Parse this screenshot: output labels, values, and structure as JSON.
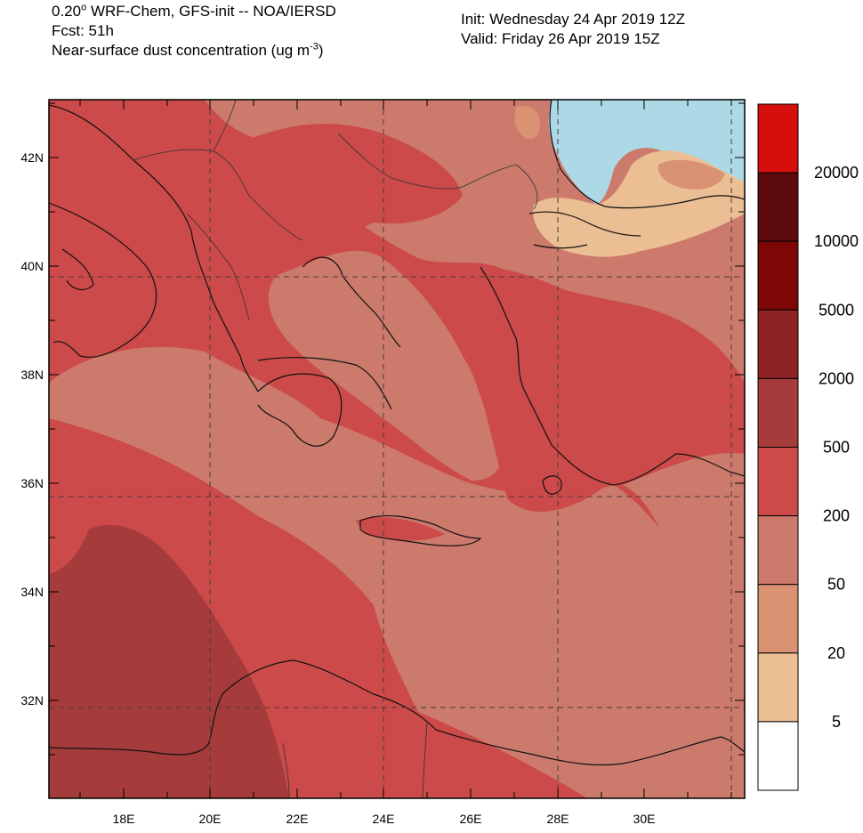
{
  "header": {
    "line1_prefix": "0.20",
    "line1_deg": "o",
    "line1_suffix": " WRF-Chem, GFS-init -- NOA/IERSD",
    "line2": "Fcst: 51h",
    "line3_prefix": "Near-surface dust concentration (ug m",
    "line3_sup": "-3",
    "line3_suffix": ")",
    "init": "Init: Wednesday 24 Apr 2019  12Z",
    "valid": "Valid: Friday 26 Apr 2019  15Z"
  },
  "map": {
    "lat_labels": [
      "42N",
      "40N",
      "38N",
      "36N",
      "34N",
      "32N"
    ],
    "lon_labels": [
      "18E",
      "20E",
      "22E",
      "24E",
      "26E",
      "28E",
      "30E"
    ]
  },
  "colorbar": {
    "labels": [
      "20000",
      "10000",
      "5000",
      "2000",
      "500",
      "200",
      "50",
      "20",
      "5"
    ],
    "colors": [
      "#d50e0e",
      "#5c0c0c",
      "#7d0707",
      "#8e2323",
      "#a53b3b",
      "#cc4a49",
      "#cb7a6c",
      "#d99272",
      "#ebbe93",
      "#ffffff"
    ],
    "sea_color": "#add8e6"
  }
}
